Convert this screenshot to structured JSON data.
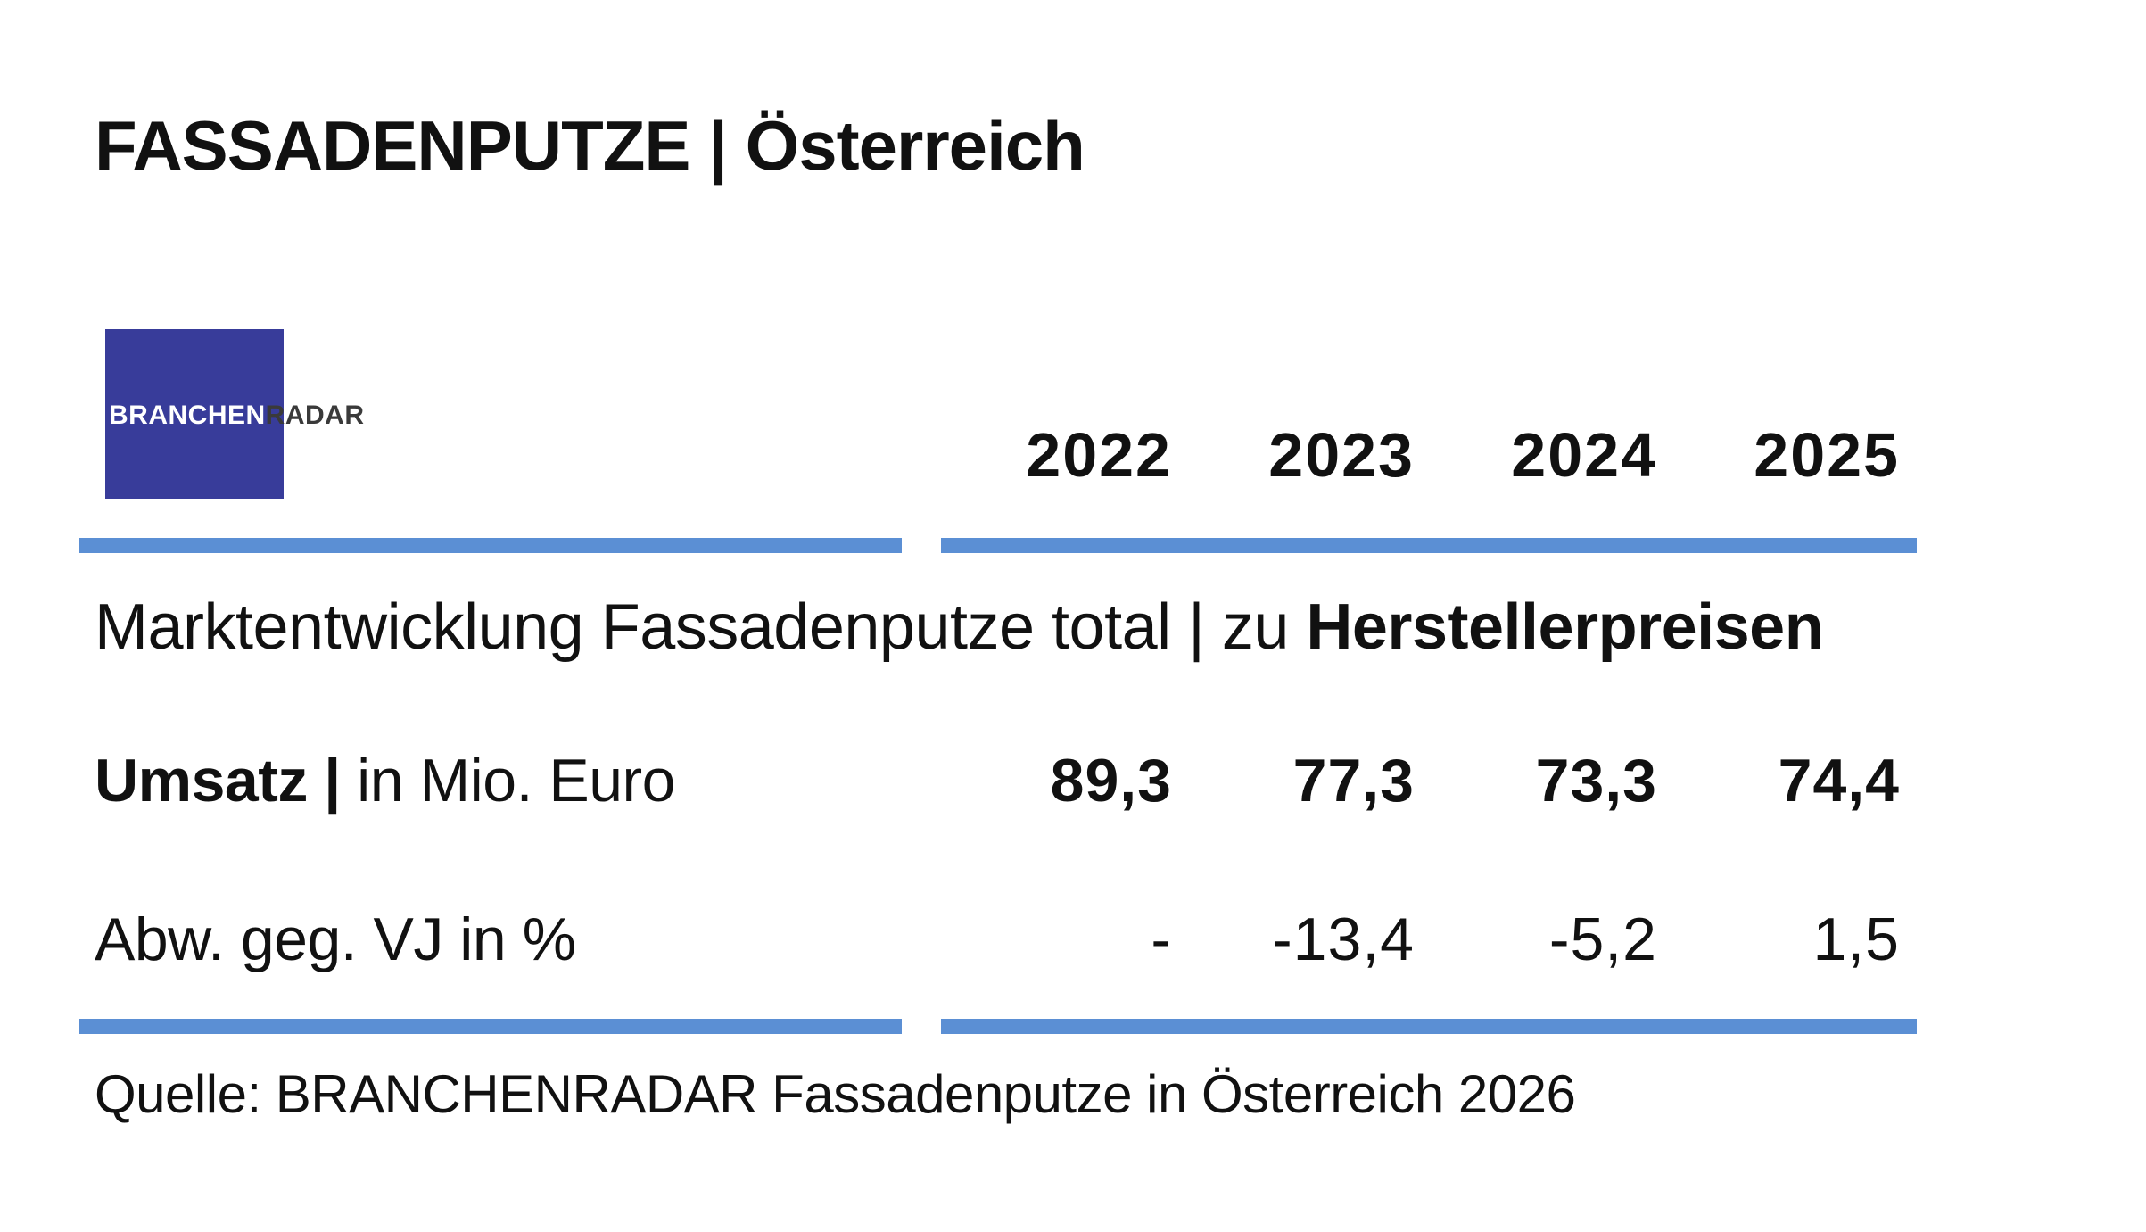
{
  "title": "FASSADENPUTZE | Österreich",
  "logo": {
    "part1": "BRANCHEN",
    "part2": "RADAR",
    "bg_color": "#383c9a"
  },
  "accent_color": "#5b8fd4",
  "subtitle": {
    "normal": "Marktentwicklung Fassadenputze total | zu ",
    "bold": "Herstellerpreisen"
  },
  "chart_data": {
    "type": "table",
    "columns": [
      "2022",
      "2023",
      "2024",
      "2025"
    ],
    "rows": [
      {
        "label_bold": "Umsatz |",
        "label_normal": " in Mio. Euro",
        "values": [
          "89,3",
          "77,3",
          "73,3",
          "74,4"
        ]
      },
      {
        "label_bold": "",
        "label_normal": "Abw. geg. VJ in %",
        "values": [
          "-",
          "-13,4",
          "-5,2",
          "1,5"
        ]
      }
    ],
    "source": "Quelle: BRANCHENRADAR Fassadenputze in Österreich 2026"
  }
}
